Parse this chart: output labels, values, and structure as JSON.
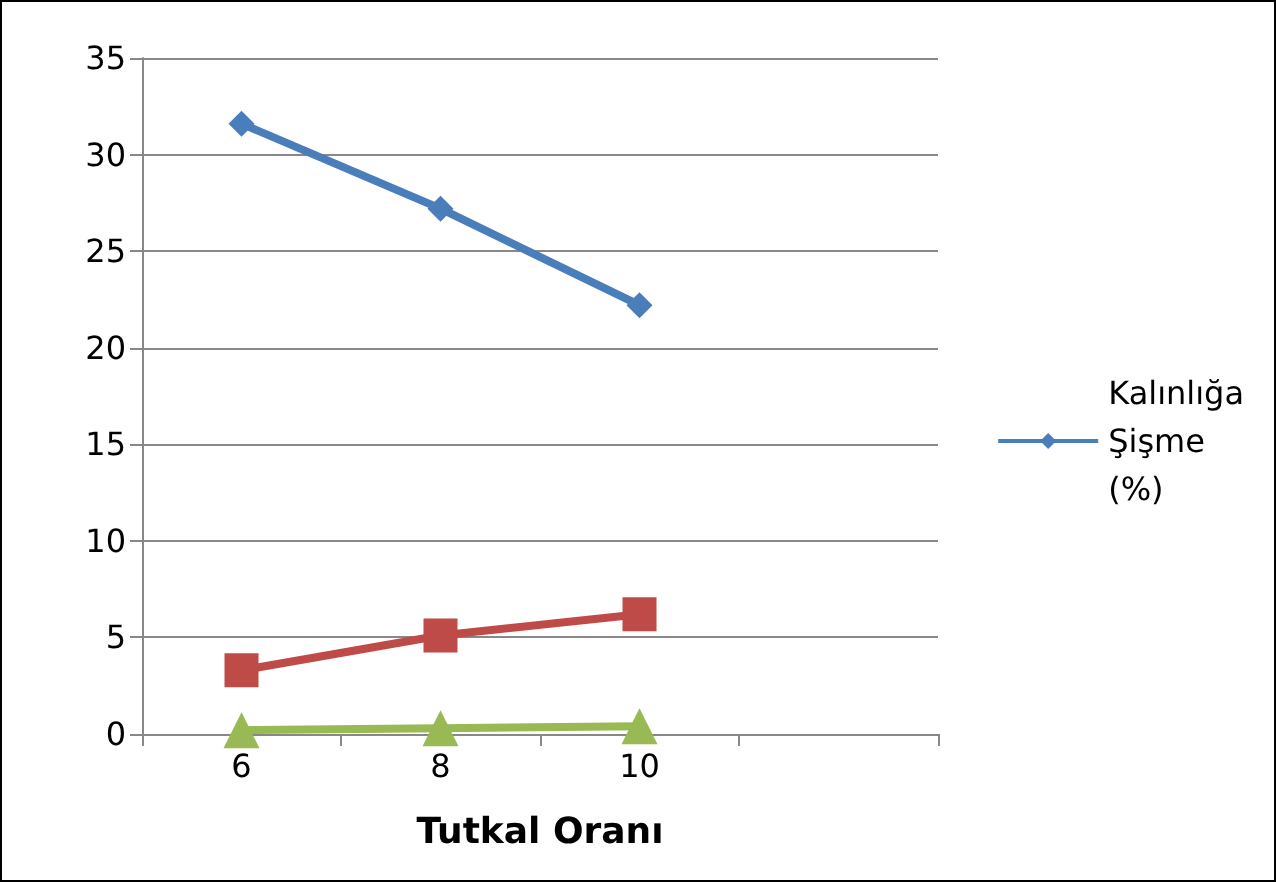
{
  "chart_data": {
    "type": "line",
    "xlabel": "Tutkal Oranı",
    "categories": [
      "6",
      "8",
      "10",
      null
    ],
    "series": [
      {
        "name": "Kalınlığa Şişme (%)",
        "color": "#4a7ebb",
        "marker": "diamond",
        "values": [
          31.6,
          27.2,
          22.2,
          null
        ]
      },
      {
        "color": "#be4b48",
        "marker": "square",
        "values": [
          3.3,
          5.1,
          6.2,
          null
        ]
      },
      {
        "color": "#98b954",
        "marker": "triangle",
        "values": [
          0.2,
          0.3,
          0.4,
          null
        ]
      }
    ],
    "ylim": [
      0,
      35
    ],
    "yticks": [
      0,
      5,
      10,
      15,
      20,
      25,
      30,
      35
    ],
    "grid": "y",
    "legend": "right"
  }
}
